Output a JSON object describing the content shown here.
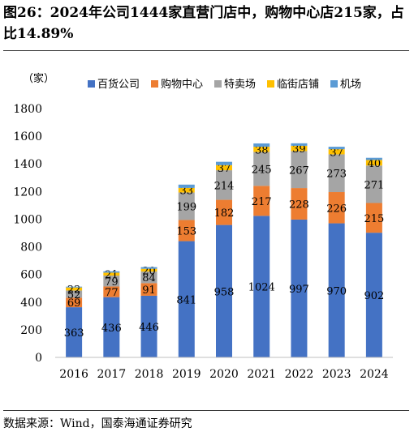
{
  "title": "图26：2024年公司1444家直营门店中，购物中心店215家，占比14.89%",
  "source": "数据来源：Wind，国泰海通证券研究",
  "chart_data": {
    "type": "bar",
    "stacked": true,
    "ylabel": "（家）",
    "categories": [
      "2016",
      "2017",
      "2018",
      "2019",
      "2020",
      "2021",
      "2022",
      "2023",
      "2024"
    ],
    "yticks": [
      "0",
      "200",
      "400",
      "600",
      "800",
      "1000",
      "1200",
      "1400",
      "1600",
      "1800"
    ],
    "ylim": [
      0,
      1800
    ],
    "legend_position": "top",
    "series": [
      {
        "name": "百货公司",
        "color": "#4472C4",
        "values": [
          363,
          436,
          446,
          841,
          958,
          1024,
          997,
          970,
          902
        ],
        "labels": [
          "363",
          "436",
          "446",
          "841",
          "958",
          "1024",
          "997",
          "970",
          "902"
        ]
      },
      {
        "name": "购物中心",
        "color": "#ED7D31",
        "values": [
          69,
          77,
          91,
          153,
          182,
          217,
          228,
          226,
          215
        ],
        "labels": [
          "69",
          "77",
          "91",
          "153",
          "182",
          "217",
          "228",
          "226",
          "215"
        ]
      },
      {
        "name": "特卖场",
        "color": "#A5A5A5",
        "values": [
          52,
          79,
          84,
          199,
          214,
          245,
          267,
          273,
          271
        ],
        "labels": [
          "52",
          "79",
          "84",
          "199",
          "214",
          "245",
          "267",
          "273",
          "271"
        ]
      },
      {
        "name": "临街店铺",
        "color": "#FFC000",
        "values": [
          22,
          21,
          20,
          33,
          37,
          38,
          39,
          37,
          40
        ],
        "labels": [
          "22",
          "21",
          "20",
          "33",
          "37",
          "38",
          "39",
          "37",
          "40"
        ]
      },
      {
        "name": "机场",
        "color": "#5B9BD5",
        "values": [
          6,
          10,
          12,
          24,
          24,
          24,
          18,
          18,
          16
        ],
        "labels": []
      }
    ]
  }
}
